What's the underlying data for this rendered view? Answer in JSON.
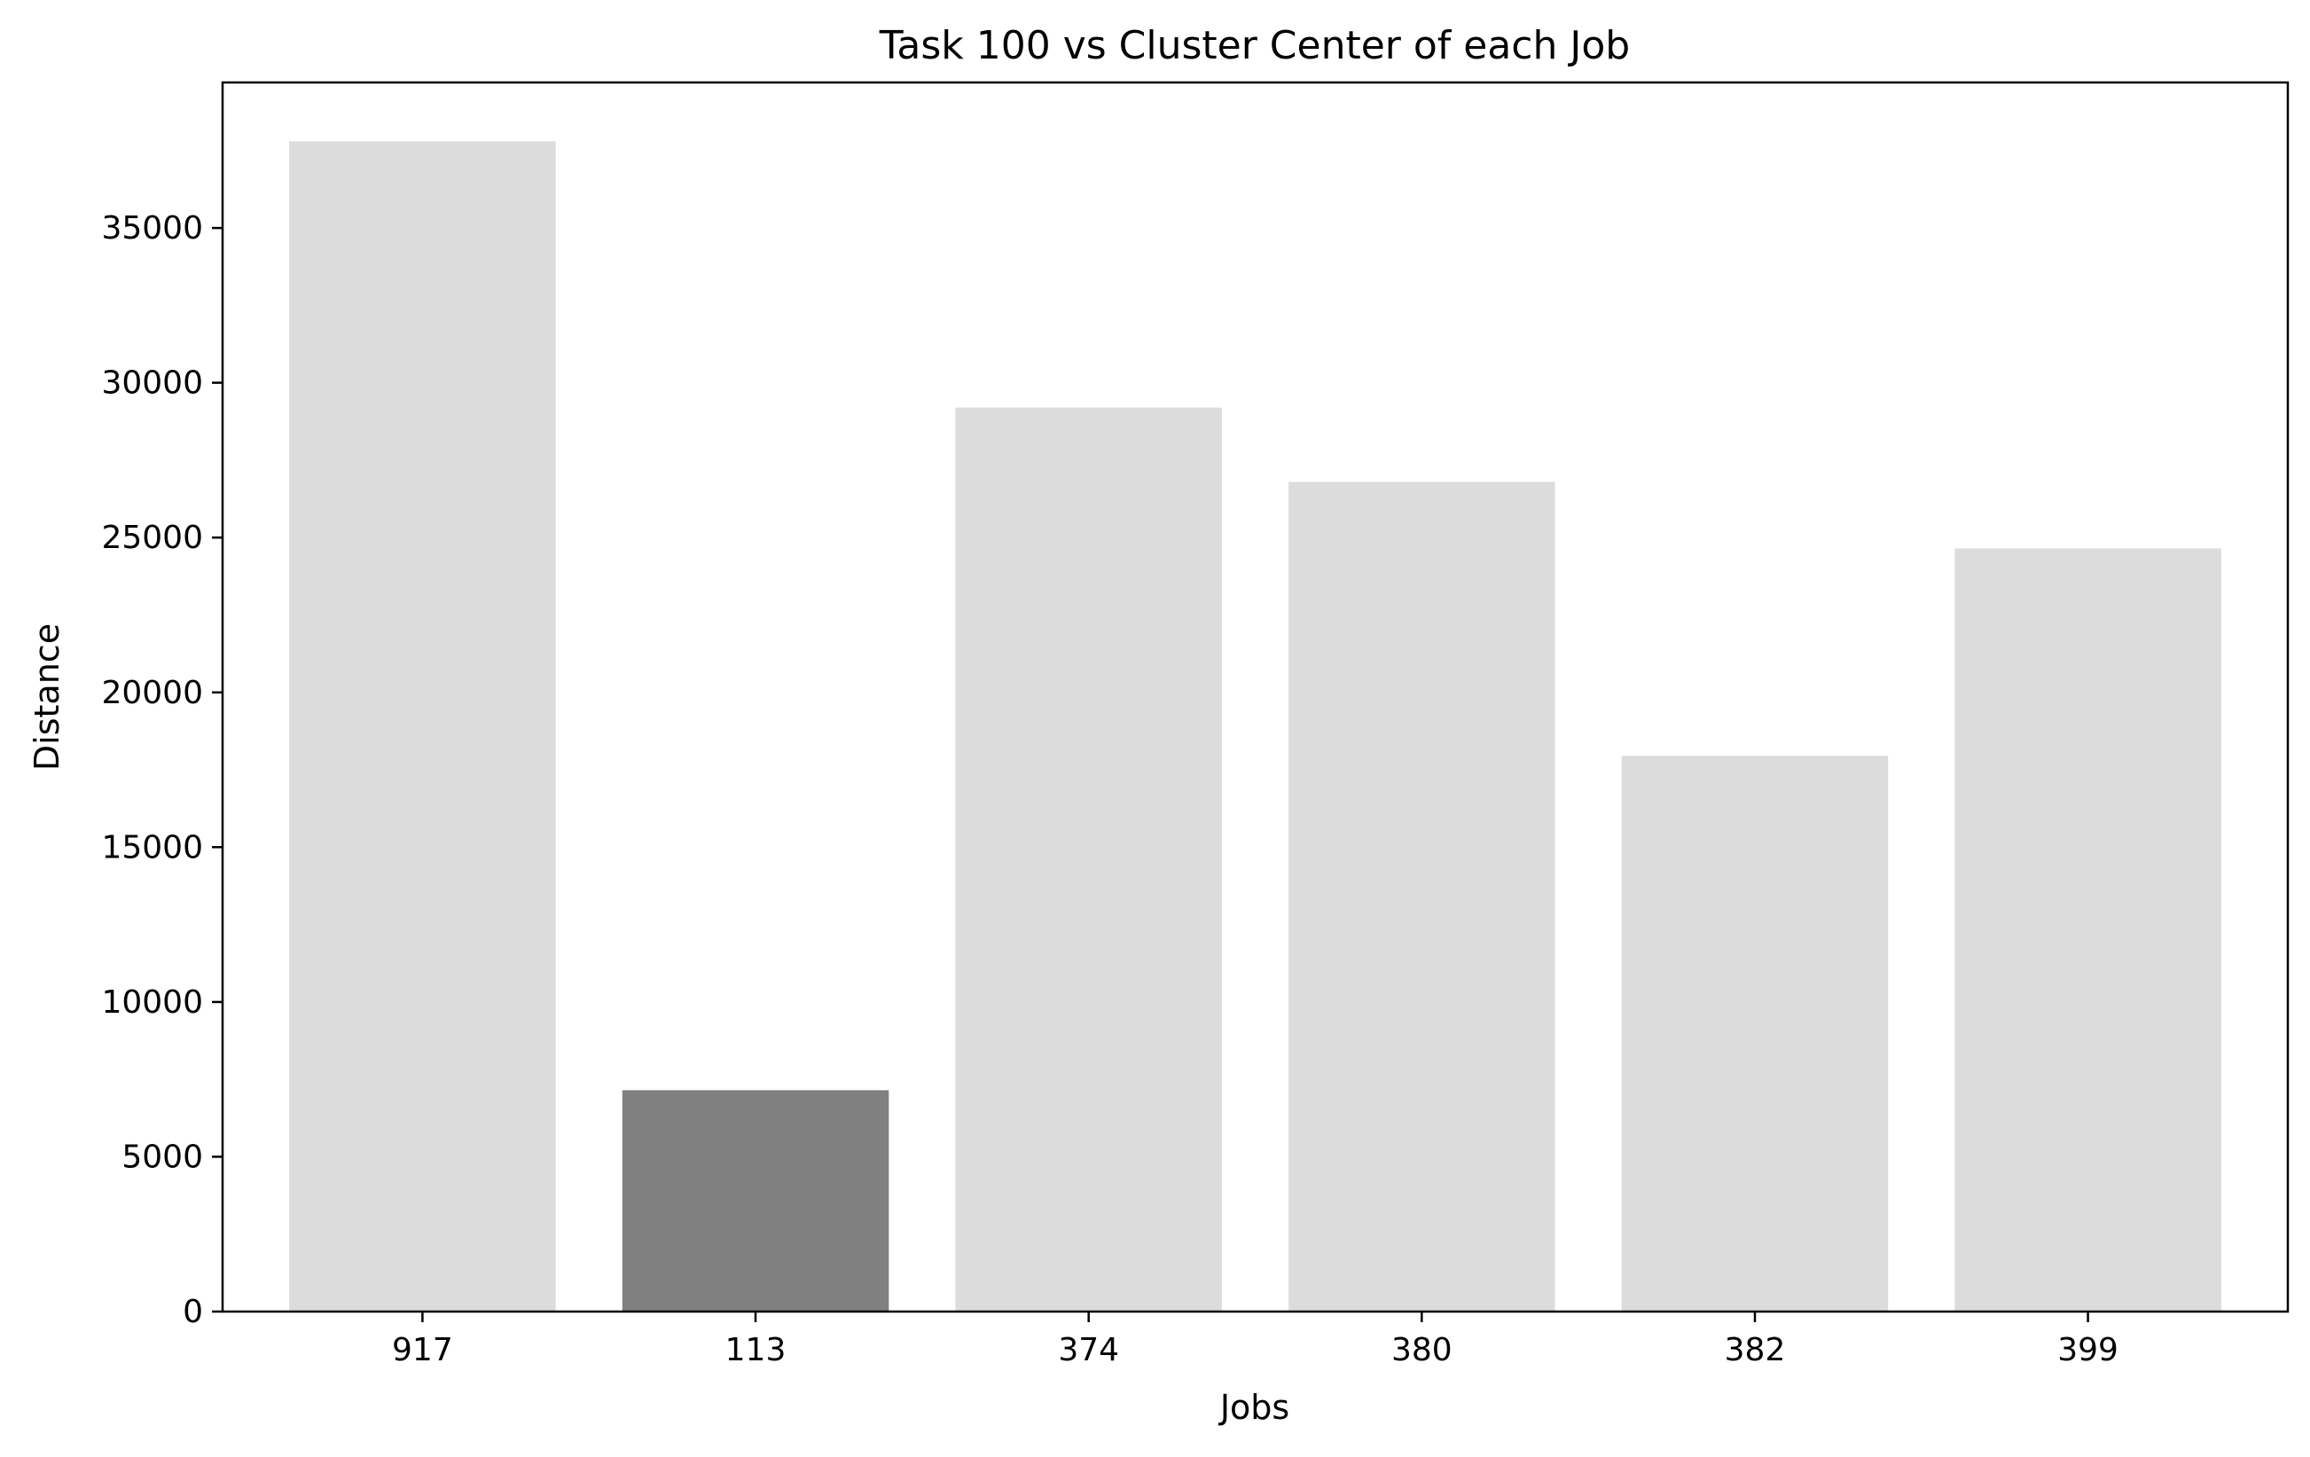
{
  "chart_data": {
    "type": "bar",
    "title": "Task 100 vs Cluster Center of each Job",
    "xlabel": "Jobs",
    "ylabel": "Distance",
    "categories": [
      "917",
      "113",
      "374",
      "380",
      "382",
      "399"
    ],
    "values": [
      37800,
      7150,
      29200,
      26800,
      17950,
      24650
    ],
    "highlight_index": 1,
    "ylim": [
      0,
      39700
    ],
    "yticks": [
      0,
      5000,
      10000,
      15000,
      20000,
      25000,
      30000,
      35000
    ],
    "grid": false,
    "legend": "none",
    "colors": {
      "bar": "#dcdcdc",
      "highlight": "#808080",
      "axis": "#000000",
      "background": "#ffffff"
    }
  }
}
